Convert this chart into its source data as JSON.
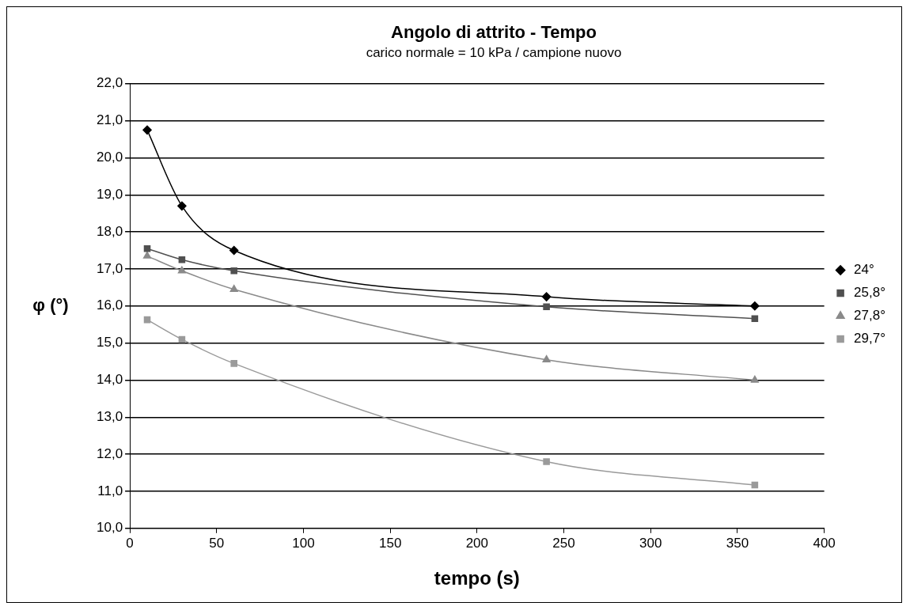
{
  "chart_data": {
    "type": "line",
    "title": "Angolo di attrito - Tempo",
    "subtitle": "carico normale = 10 kPa / campione nuovo",
    "xlabel": "tempo (s)",
    "ylabel": "φ (°)",
    "x": [
      10,
      30,
      60,
      240,
      360
    ],
    "series": [
      {
        "name": "24°",
        "color": "#000000",
        "marker": "diamond",
        "values": [
          20.75,
          18.7,
          17.5,
          16.25,
          16.0
        ]
      },
      {
        "name": "25,8°",
        "color": "#505050",
        "marker": "square",
        "values": [
          17.55,
          17.25,
          16.95,
          15.98,
          15.66
        ]
      },
      {
        "name": "27,8°",
        "color": "#8a8a8a",
        "marker": "triangle",
        "values": [
          17.35,
          16.95,
          16.45,
          14.55,
          14.0
        ]
      },
      {
        "name": "29,7°",
        "color": "#9a9a9a",
        "marker": "square",
        "values": [
          15.63,
          15.1,
          14.45,
          11.8,
          11.17
        ]
      }
    ],
    "xlim": [
      0,
      400
    ],
    "xticks": [
      0,
      50,
      100,
      150,
      200,
      250,
      300,
      350,
      400
    ],
    "ylim": [
      10,
      22
    ],
    "yticks": [
      {
        "value": 10,
        "label": "10,0"
      },
      {
        "value": 11,
        "label": "11,0"
      },
      {
        "value": 12,
        "label": "12,0"
      },
      {
        "value": 13,
        "label": "13,0"
      },
      {
        "value": 14,
        "label": "14,0"
      },
      {
        "value": 15,
        "label": "15,0"
      },
      {
        "value": 16,
        "label": "16,0"
      },
      {
        "value": 17,
        "label": "17,0"
      },
      {
        "value": 18,
        "label": "18,0"
      },
      {
        "value": 19,
        "label": "19,0"
      },
      {
        "value": 20,
        "label": "20,0"
      },
      {
        "value": 21,
        "label": "21,0"
      },
      {
        "value": 22,
        "label": "22,0"
      }
    ],
    "grid": "y",
    "legend": "right",
    "line_style": "solid"
  }
}
